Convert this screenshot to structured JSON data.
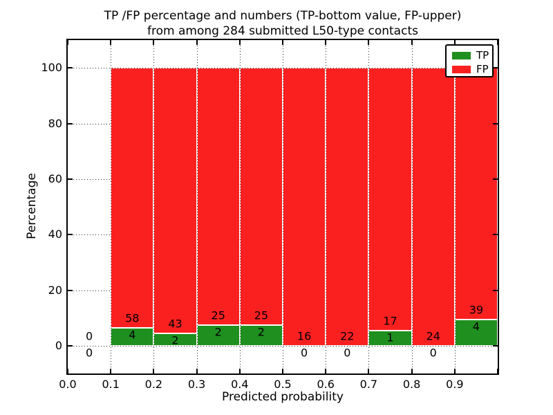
{
  "chart_data": {
    "type": "bar",
    "stacked": true,
    "normalized_to_percent": true,
    "title_line1": "TP /FP percentage and numbers (TP-bottom value, FP-upper)",
    "title_line2": "from among 284 submitted L50-type contacts",
    "xlabel": "Predicted probability",
    "ylabel": "Percentage",
    "xlim": [
      0.0,
      1.0
    ],
    "ylim": [
      -10,
      110
    ],
    "x_ticks": [
      "0.0",
      "0.1",
      "0.2",
      "0.3",
      "0.4",
      "0.5",
      "0.6",
      "0.7",
      "0.8",
      "0.9"
    ],
    "y_ticks": [
      0,
      20,
      40,
      60,
      80,
      100
    ],
    "grid": "dotted",
    "legend_position": "upper right",
    "total_contacts": 284,
    "bin_width": 0.1,
    "bin_starts": [
      0.0,
      0.1,
      0.2,
      0.3,
      0.4,
      0.5,
      0.6,
      0.7,
      0.8,
      0.9
    ],
    "series": [
      {
        "name": "TP",
        "color": "#1f8f1f",
        "values": [
          0,
          4,
          2,
          2,
          2,
          0,
          0,
          1,
          0,
          4
        ]
      },
      {
        "name": "FP",
        "color": "#fb2020",
        "values": [
          0,
          58,
          43,
          25,
          25,
          16,
          22,
          17,
          24,
          39
        ]
      }
    ],
    "tp_percent_per_bin": [
      null,
      6.45,
      4.44,
      7.41,
      7.41,
      0,
      0,
      5.56,
      0,
      9.3
    ],
    "colors": {
      "tp": "#1f8f1f",
      "fp": "#fb2020",
      "grid": "#222222",
      "text": "#000000",
      "background": "#ffffff"
    }
  }
}
